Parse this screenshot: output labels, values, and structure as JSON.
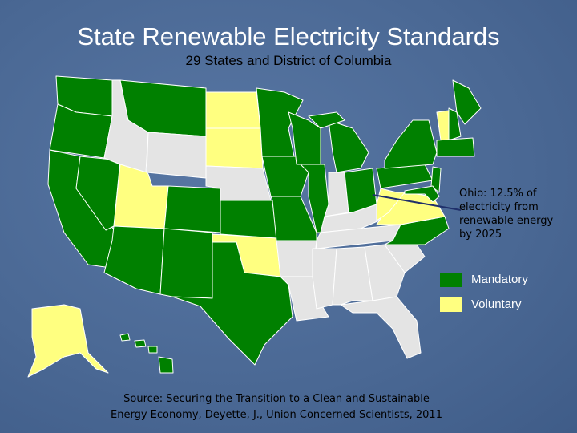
{
  "header": {
    "title": "State Renewable Electricity Standards",
    "subtitle": "29 States and District of Columbia"
  },
  "callout": "Ohio: 12.5% of electricity from renewable energy by 2025",
  "legend": [
    {
      "label": "Mandatory",
      "color": "#008000"
    },
    {
      "label": "Voluntary",
      "color": "#ffff80"
    }
  ],
  "source": [
    "Source: Securing the Transition to a Clean and Sustainable",
    "Energy Economy, Deyette, J., Union Concerned Scientists, 2011"
  ]
}
